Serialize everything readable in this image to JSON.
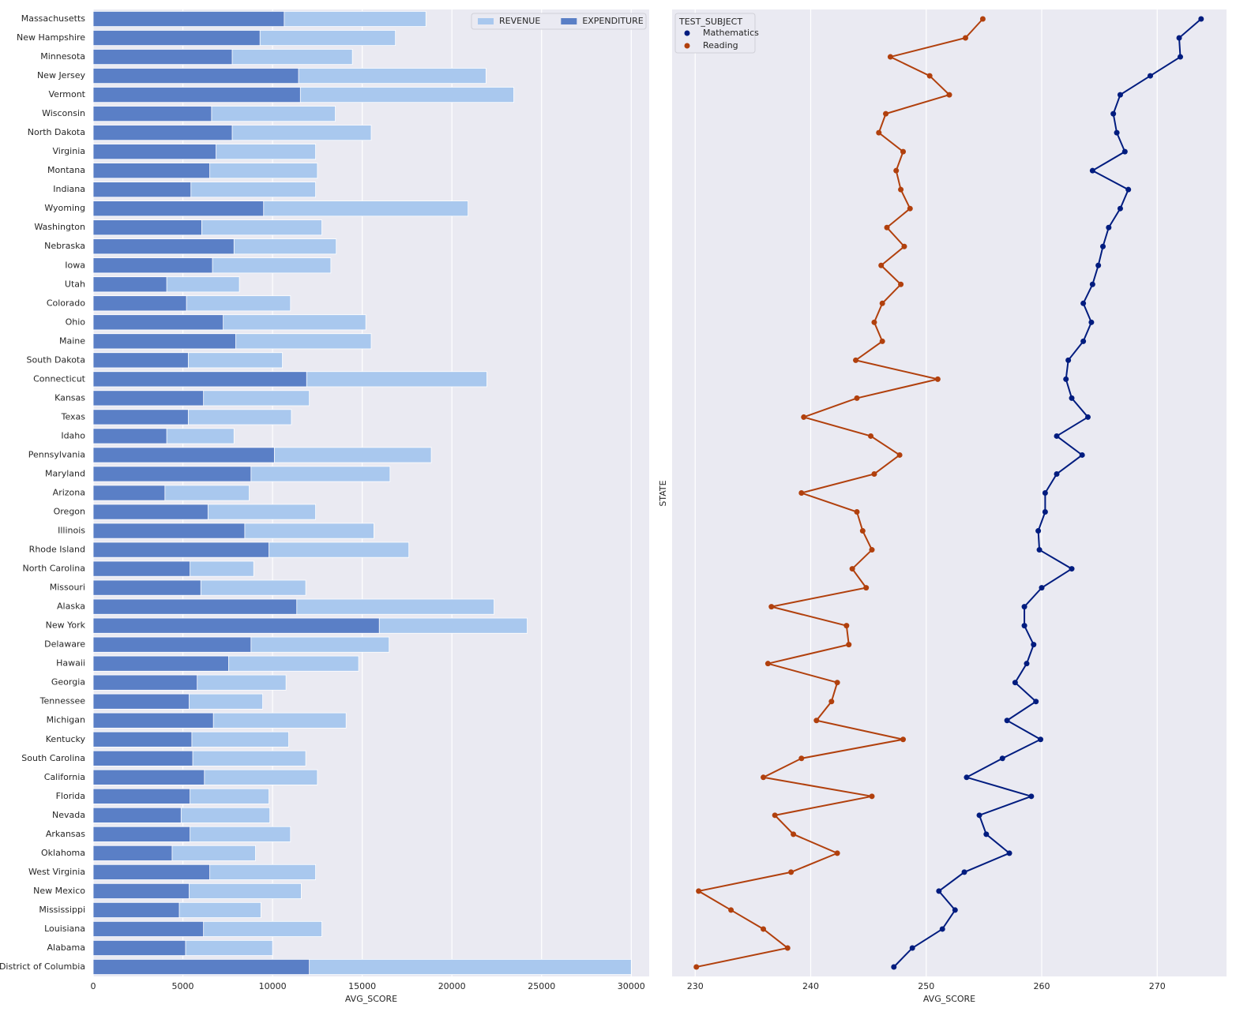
{
  "chart_data": [
    {
      "type": "bar",
      "orientation": "horizontal",
      "xlabel": "AVG_SCORE",
      "categories": [
        "Massachusetts",
        "New Hampshire",
        "Minnesota",
        "New Jersey",
        "Vermont",
        "Wisconsin",
        "North Dakota",
        "Virginia",
        "Montana",
        "Indiana",
        "Wyoming",
        "Washington",
        "Nebraska",
        "Iowa",
        "Utah",
        "Colorado",
        "Ohio",
        "Maine",
        "South Dakota",
        "Connecticut",
        "Kansas",
        "Texas",
        "Idaho",
        "Pennsylvania",
        "Maryland",
        "Arizona",
        "Oregon",
        "Illinois",
        "Rhode Island",
        "North Carolina",
        "Missouri",
        "Alaska",
        "New York",
        "Delaware",
        "Hawaii",
        "Georgia",
        "Tennessee",
        "Michigan",
        "Kentucky",
        "South Carolina",
        "California",
        "Florida",
        "Nevada",
        "Arkansas",
        "Oklahoma",
        "West Virginia",
        "New Mexico",
        "Mississippi",
        "Louisiana",
        "Alabama",
        "District of Columbia"
      ],
      "series": [
        {
          "name": "REVENUE",
          "color": "#a9c8ee",
          "values": [
            18550,
            16850,
            14450,
            21900,
            23450,
            13500,
            15500,
            12400,
            12500,
            12400,
            20900,
            12750,
            13550,
            13250,
            8150,
            11000,
            15200,
            15500,
            10550,
            21950,
            12050,
            11050,
            7850,
            18850,
            16550,
            8700,
            12400,
            15650,
            17600,
            8950,
            11850,
            22350,
            24200,
            16500,
            14800,
            10750,
            9450,
            14100,
            10900,
            11850,
            12500,
            9800,
            9850,
            11000,
            9050,
            12400,
            11600,
            9350,
            12750,
            10000,
            30000
          ]
        },
        {
          "name": "EXPENDITURE",
          "color": "#5a7fc6",
          "values": [
            10650,
            9300,
            7750,
            11450,
            11550,
            6600,
            7750,
            6850,
            6500,
            5450,
            9500,
            6050,
            7850,
            6650,
            4100,
            5200,
            7250,
            7950,
            5300,
            11900,
            6150,
            5300,
            4100,
            10100,
            8800,
            4000,
            6400,
            8450,
            9800,
            5400,
            6000,
            11350,
            15950,
            8800,
            7550,
            5800,
            5350,
            6700,
            5500,
            5550,
            6200,
            5400,
            4900,
            5400,
            4400,
            6500,
            5350,
            4800,
            6150,
            5150,
            12050
          ]
        }
      ],
      "xlim": [
        0,
        31000
      ],
      "xticks": [
        0,
        5000,
        10000,
        15000,
        20000,
        25000,
        30000
      ],
      "grid": true,
      "legend": "upper right"
    },
    {
      "type": "line",
      "orientation": "horizontal",
      "xlabel": "AVG_SCORE",
      "ylabel": "STATE",
      "legend_title": "TEST_SUBJECT",
      "categories": [
        null,
        null,
        null,
        null,
        null,
        null,
        null,
        null,
        null,
        null,
        null,
        null,
        null,
        null,
        null,
        null,
        null,
        null,
        null,
        null,
        null,
        null,
        null,
        null,
        null,
        null,
        null,
        null,
        null,
        null,
        null,
        null,
        null,
        null,
        null,
        null,
        null,
        null,
        null,
        null,
        null,
        null,
        null,
        null,
        null,
        null,
        null,
        null,
        null,
        null,
        null
      ],
      "series": [
        {
          "name": "Mathematics",
          "color": "#001c7f",
          "values": [
            273.8,
            271.9,
            272.0,
            269.4,
            266.8,
            266.2,
            266.5,
            267.2,
            264.4,
            267.5,
            266.8,
            265.8,
            265.3,
            264.9,
            264.4,
            263.6,
            264.3,
            263.6,
            262.3,
            262.1,
            262.6,
            264.0,
            261.3,
            263.5,
            261.3,
            260.3,
            260.3,
            259.7,
            259.8,
            262.6,
            260.0,
            258.5,
            258.5,
            259.3,
            258.7,
            257.7,
            259.5,
            257.0,
            259.9,
            256.6,
            253.5,
            259.1,
            254.6,
            255.2,
            257.2,
            253.3,
            251.1,
            252.5,
            251.4,
            248.8,
            247.2
          ]
        },
        {
          "name": "Reading",
          "color": "#b1400d",
          "values": [
            254.9,
            253.4,
            246.9,
            250.3,
            252.0,
            246.5,
            245.9,
            248.0,
            247.4,
            247.8,
            248.6,
            246.6,
            248.1,
            246.1,
            247.8,
            246.2,
            245.5,
            246.2,
            243.9,
            251.0,
            244.0,
            239.4,
            245.2,
            247.7,
            245.5,
            239.2,
            244.0,
            244.5,
            245.3,
            243.6,
            244.8,
            236.6,
            243.1,
            243.3,
            236.3,
            242.3,
            241.8,
            240.5,
            248.0,
            239.2,
            235.9,
            245.3,
            236.9,
            238.5,
            242.3,
            238.3,
            230.3,
            233.1,
            235.9,
            238.0,
            230.1
          ]
        }
      ],
      "xlim": [
        228,
        276
      ],
      "xticks": [
        230,
        240,
        250,
        260,
        270
      ],
      "grid": true,
      "legend": "upper left"
    }
  ]
}
